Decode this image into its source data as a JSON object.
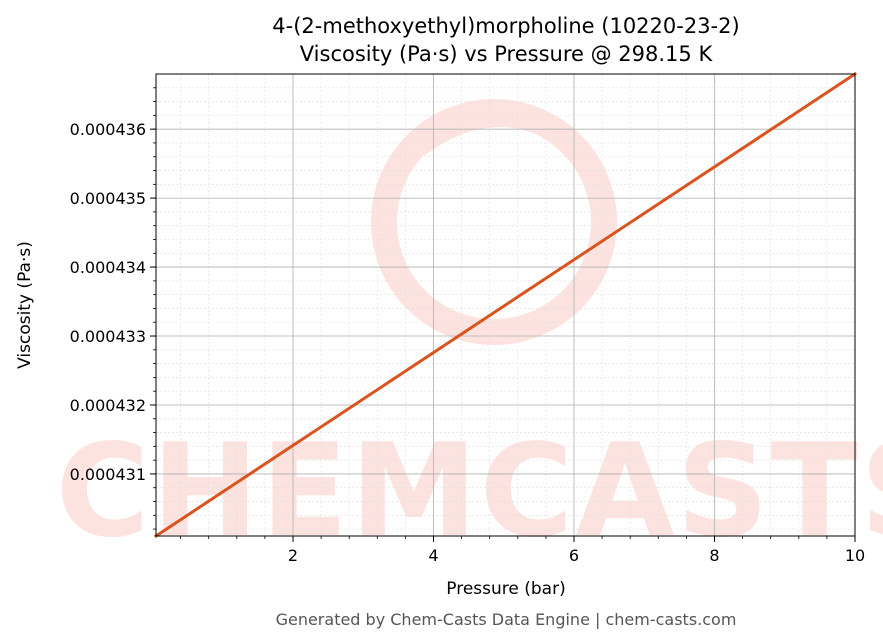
{
  "chart_data": {
    "type": "line",
    "title": "4-(2-methoxyethyl)morpholine (10220-23-2)",
    "subtitle": "Viscosity (Pa·s) vs Pressure @ 298.15 K",
    "xlabel": "Pressure (bar)",
    "ylabel": "Viscosity (Pa·s)",
    "xlim": [
      0.05,
      10
    ],
    "ylim": [
      0.0004301,
      0.0004368
    ],
    "x_ticks": [
      2,
      4,
      6,
      8,
      10
    ],
    "y_ticks": [
      0.000431,
      0.000432,
      0.000433,
      0.000434,
      0.000435,
      0.000436
    ],
    "y_tick_labels": [
      "0.000431",
      "0.000432",
      "0.000433",
      "0.000434",
      "0.000435",
      "0.000436"
    ],
    "grid": true,
    "series": [
      {
        "color": "#d9541e",
        "x": [
          0.05,
          10
        ],
        "y": [
          0.0004301,
          0.0004368
        ]
      }
    ]
  },
  "footer": "Generated by Chem-Casts Data Engine | chem-casts.com",
  "watermark": "CHEMCASTS",
  "colors": {
    "line": "#d9541e",
    "watermark": "#fde3df",
    "grid_major": "#b0b0b0",
    "grid_minor": "#e0e0e0"
  }
}
